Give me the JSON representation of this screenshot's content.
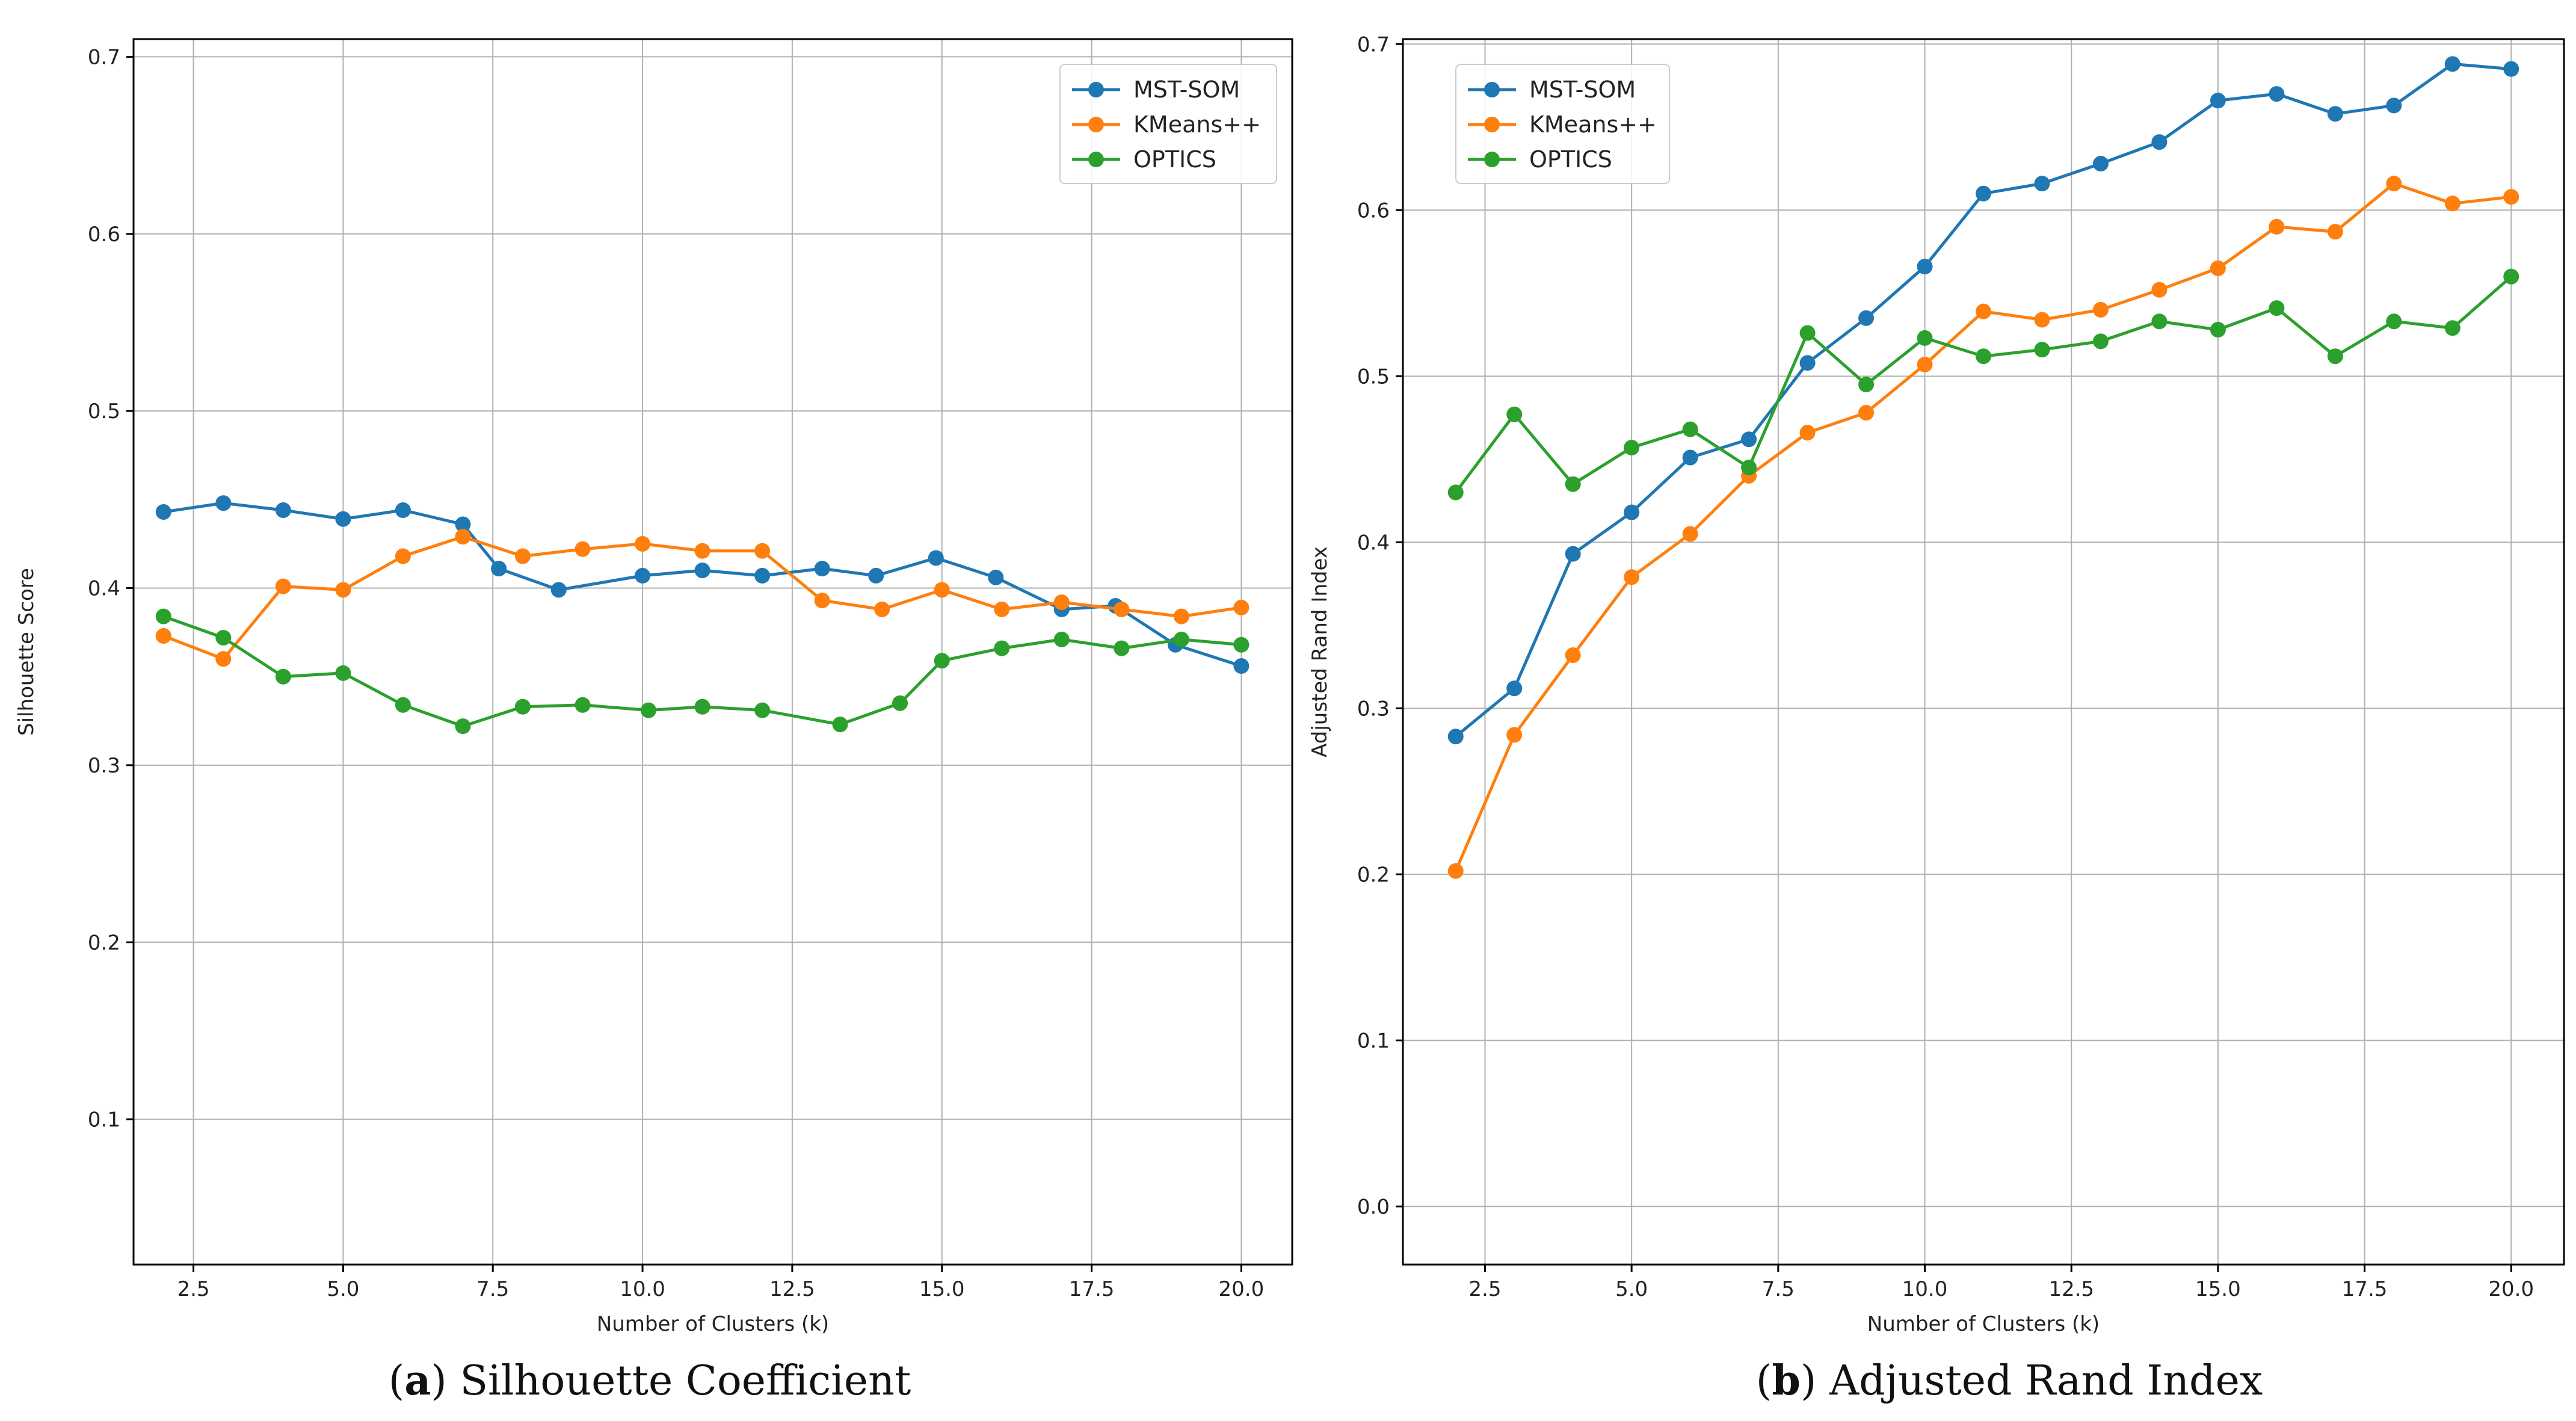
{
  "chart_data": [
    {
      "type": "line",
      "caption_letter": "a",
      "caption_text": "Silhouette Coefficient",
      "xlabel": "Number of Clusters (k)",
      "ylabel": "Silhouette Score",
      "xlim": [
        1.5,
        20.85
      ],
      "ylim": [
        0.018,
        0.71
      ],
      "xticks": [
        2.5,
        5.0,
        7.5,
        10.0,
        12.5,
        15.0,
        17.5,
        20.0
      ],
      "xtick_labels": [
        "2.5",
        "5.0",
        "7.5",
        "10.0",
        "12.5",
        "15.0",
        "17.5",
        "20.0"
      ],
      "yticks": [
        0.1,
        0.2,
        0.3,
        0.4,
        0.5,
        0.6,
        0.7
      ],
      "ytick_labels": [
        "0.1",
        "0.2",
        "0.3",
        "0.4",
        "0.5",
        "0.6",
        "0.7"
      ],
      "grid": true,
      "legend_position": "top-right",
      "series": [
        {
          "name": "MST-SOM",
          "color": "#1f77b4",
          "x": [
            2,
            3,
            4,
            5,
            6,
            7,
            7.6,
            8.6,
            10,
            11,
            12,
            13,
            13.9,
            14.9,
            15.9,
            17,
            17.9,
            18.9,
            20
          ],
          "y": [
            0.443,
            0.448,
            0.444,
            0.439,
            0.444,
            0.436,
            0.411,
            0.399,
            0.407,
            0.41,
            0.407,
            0.411,
            0.407,
            0.417,
            0.406,
            0.388,
            0.39,
            0.368,
            0.356
          ]
        },
        {
          "name": "KMeans++",
          "color": "#ff7f0e",
          "x": [
            2,
            3,
            4,
            5,
            6,
            7,
            8,
            9,
            10,
            11,
            12,
            13,
            14,
            15,
            16,
            17,
            18,
            19,
            20
          ],
          "y": [
            0.373,
            0.36,
            0.401,
            0.399,
            0.418,
            0.429,
            0.418,
            0.422,
            0.425,
            0.421,
            0.421,
            0.393,
            0.388,
            0.399,
            0.388,
            0.392,
            0.388,
            0.384,
            0.389
          ]
        },
        {
          "name": "OPTICS",
          "color": "#2ca02c",
          "x": [
            2,
            3,
            4,
            5,
            6,
            7,
            8,
            9,
            10.1,
            11,
            12,
            13.3,
            14.3,
            15,
            16,
            17,
            18,
            19,
            20
          ],
          "y": [
            0.384,
            0.372,
            0.35,
            0.352,
            0.334,
            0.322,
            0.333,
            0.334,
            0.331,
            0.333,
            0.331,
            0.323,
            0.335,
            0.359,
            0.366,
            0.371,
            0.366,
            0.371,
            0.368
          ]
        }
      ]
    },
    {
      "type": "line",
      "caption_letter": "b",
      "caption_text": "Adjusted Rand Index",
      "xlabel": "Number of Clusters (k)",
      "ylabel": "Adjusted Rand Index",
      "xlim": [
        1.1,
        20.9
      ],
      "ylim": [
        -0.035,
        0.703
      ],
      "xticks": [
        2.5,
        5.0,
        7.5,
        10.0,
        12.5,
        15.0,
        17.5,
        20.0
      ],
      "xtick_labels": [
        "2.5",
        "5.0",
        "7.5",
        "10.0",
        "12.5",
        "15.0",
        "17.5",
        "20.0"
      ],
      "yticks": [
        0.0,
        0.1,
        0.2,
        0.3,
        0.4,
        0.5,
        0.6,
        0.7
      ],
      "ytick_labels": [
        "0.0",
        "0.1",
        "0.2",
        "0.3",
        "0.4",
        "0.5",
        "0.6",
        "0.7"
      ],
      "grid": true,
      "legend_position": "top-left",
      "series": [
        {
          "name": "MST-SOM",
          "color": "#1f77b4",
          "x": [
            2,
            3,
            4,
            5,
            6,
            7,
            8,
            9,
            10,
            11,
            12,
            13,
            14,
            15,
            16,
            17,
            18,
            19,
            20
          ],
          "y": [
            0.283,
            0.312,
            0.393,
            0.418,
            0.451,
            0.462,
            0.508,
            0.535,
            0.566,
            0.61,
            0.616,
            0.628,
            0.641,
            0.666,
            0.67,
            0.658,
            0.663,
            0.688,
            0.685
          ]
        },
        {
          "name": "KMeans++",
          "color": "#ff7f0e",
          "x": [
            2,
            3,
            4,
            5,
            6,
            7,
            8,
            9,
            10,
            11,
            12,
            13,
            14,
            15,
            16,
            17,
            18,
            19,
            20
          ],
          "y": [
            0.202,
            0.284,
            0.332,
            0.379,
            0.405,
            0.44,
            0.466,
            0.478,
            0.507,
            0.539,
            0.534,
            0.54,
            0.552,
            0.565,
            0.59,
            0.587,
            0.616,
            0.604,
            0.608
          ]
        },
        {
          "name": "OPTICS",
          "color": "#2ca02c",
          "x": [
            2,
            3,
            4,
            5,
            6,
            7,
            8,
            9,
            10,
            11,
            12,
            13,
            14,
            15,
            16,
            17,
            18,
            19,
            20
          ],
          "y": [
            0.43,
            0.477,
            0.435,
            0.457,
            0.468,
            0.445,
            0.526,
            0.495,
            0.523,
            0.512,
            0.516,
            0.521,
            0.533,
            0.528,
            0.541,
            0.512,
            0.533,
            0.529,
            0.56
          ]
        }
      ]
    }
  ]
}
